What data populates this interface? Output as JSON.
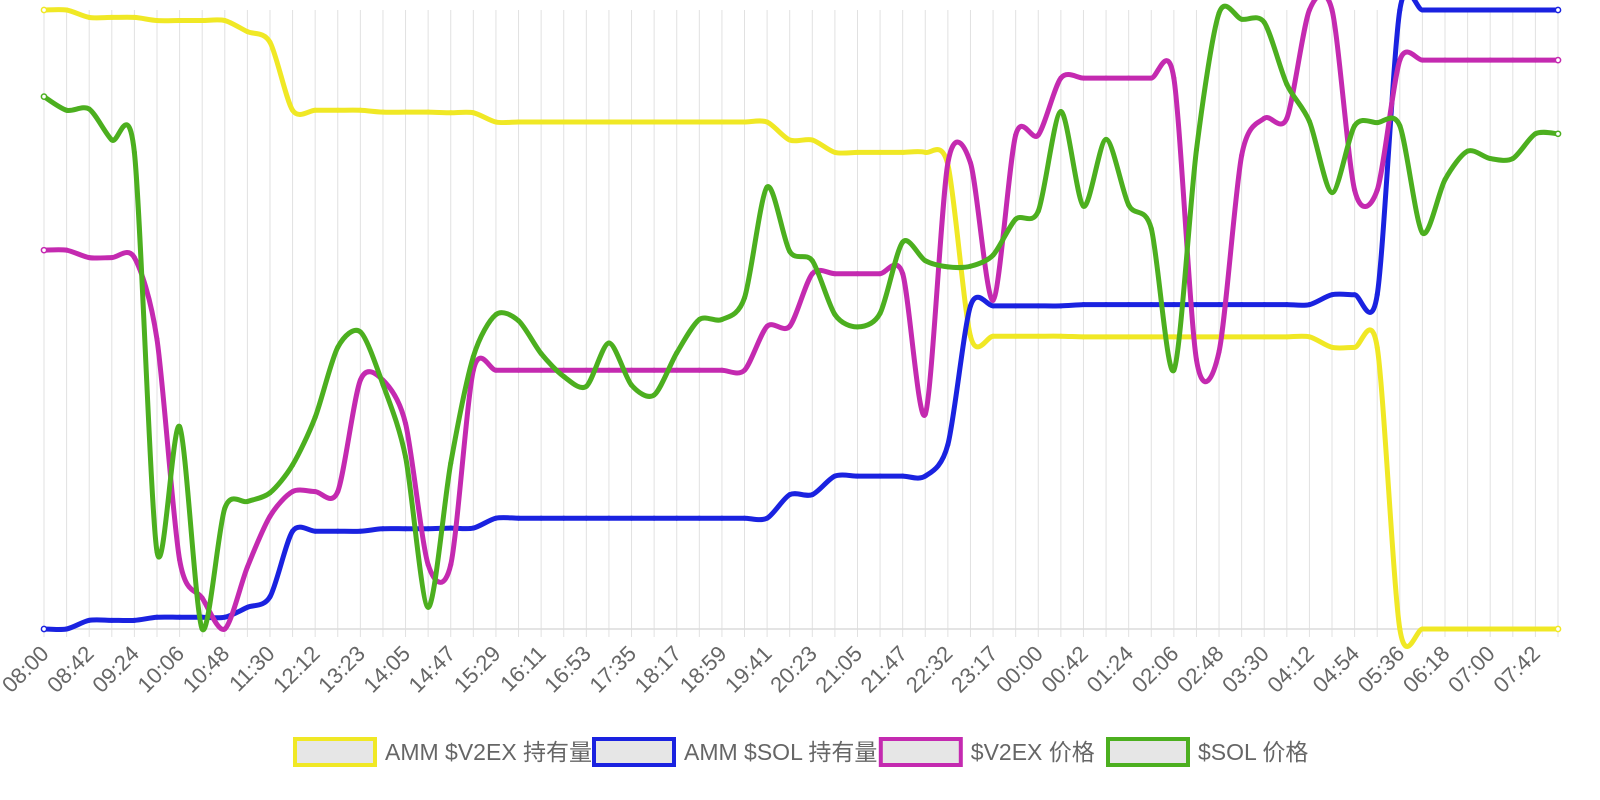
{
  "chart_data": {
    "type": "line",
    "x": [
      "08:00",
      "08:21",
      "08:42",
      "09:03",
      "09:24",
      "09:45",
      "10:06",
      "10:27",
      "10:48",
      "11:09",
      "11:30",
      "11:51",
      "12:12",
      "12:47",
      "13:23",
      "13:44",
      "14:05",
      "14:26",
      "14:47",
      "15:08",
      "15:29",
      "15:50",
      "16:11",
      "16:32",
      "16:53",
      "17:14",
      "17:35",
      "17:56",
      "18:17",
      "18:38",
      "18:59",
      "19:20",
      "19:41",
      "20:02",
      "20:23",
      "20:44",
      "21:05",
      "21:26",
      "21:47",
      "22:08",
      "22:32",
      "22:54",
      "23:17",
      "23:38",
      "00:00",
      "00:21",
      "00:42",
      "01:03",
      "01:24",
      "01:45",
      "02:06",
      "02:27",
      "02:48",
      "03:09",
      "03:30",
      "03:51",
      "04:12",
      "04:33",
      "04:54",
      "05:15",
      "05:36",
      "05:57",
      "06:18",
      "06:39",
      "07:00",
      "07:21",
      "07:42",
      "08:03"
    ],
    "tick_labels": [
      "08:00",
      "08:42",
      "09:24",
      "10:06",
      "10:48",
      "11:30",
      "12:12",
      "13:23",
      "14:05",
      "14:47",
      "15:29",
      "16:11",
      "16:53",
      "17:35",
      "18:17",
      "18:59",
      "19:41",
      "20:23",
      "21:05",
      "21:47",
      "22:32",
      "23:17",
      "00:00",
      "00:42",
      "01:24",
      "02:06",
      "02:48",
      "03:30",
      "04:12",
      "04:54",
      "05:36",
      "06:18",
      "07:00",
      "07:42"
    ],
    "ylim": [
      0,
      1
    ],
    "grid": true,
    "legend_position": "bottom",
    "series": [
      {
        "name": "AMM $V2EX 持有量",
        "color": "#f0e825",
        "values": [
          1.0,
          1.0,
          0.988,
          0.988,
          0.988,
          0.983,
          0.983,
          0.983,
          0.983,
          0.965,
          0.948,
          0.838,
          0.838,
          0.838,
          0.838,
          0.835,
          0.835,
          0.835,
          0.834,
          0.834,
          0.819,
          0.819,
          0.819,
          0.819,
          0.819,
          0.819,
          0.819,
          0.819,
          0.819,
          0.819,
          0.819,
          0.819,
          0.819,
          0.79,
          0.79,
          0.77,
          0.77,
          0.77,
          0.77,
          0.77,
          0.75,
          0.473,
          0.473,
          0.473,
          0.473,
          0.473,
          0.472,
          0.472,
          0.472,
          0.472,
          0.472,
          0.472,
          0.472,
          0.472,
          0.472,
          0.472,
          0.472,
          0.455,
          0.455,
          0.455,
          0.0,
          0.0,
          0.0,
          0.0,
          0.0,
          0.0,
          0.0,
          0.0
        ]
      },
      {
        "name": "AMM $SOL 持有量",
        "color": "#1a22e0",
        "values": [
          0.0,
          0.0,
          0.014,
          0.014,
          0.014,
          0.019,
          0.019,
          0.019,
          0.019,
          0.035,
          0.052,
          0.158,
          0.158,
          0.158,
          0.158,
          0.162,
          0.162,
          0.162,
          0.163,
          0.163,
          0.179,
          0.179,
          0.179,
          0.179,
          0.179,
          0.179,
          0.179,
          0.179,
          0.179,
          0.179,
          0.179,
          0.179,
          0.179,
          0.217,
          0.217,
          0.247,
          0.247,
          0.247,
          0.247,
          0.247,
          0.298,
          0.522,
          0.522,
          0.522,
          0.522,
          0.522,
          0.524,
          0.524,
          0.524,
          0.524,
          0.524,
          0.524,
          0.524,
          0.524,
          0.524,
          0.524,
          0.524,
          0.54,
          0.54,
          0.54,
          1.0,
          1.0,
          1.0,
          1.0,
          1.0,
          1.0,
          1.0,
          1.0
        ]
      },
      {
        "name": "$V2EX 价格",
        "color": "#c42ab0",
        "values": [
          0.612,
          0.612,
          0.6,
          0.6,
          0.6,
          0.468,
          0.112,
          0.05,
          0.0,
          0.1,
          0.182,
          0.222,
          0.222,
          0.222,
          0.402,
          0.402,
          0.332,
          0.104,
          0.104,
          0.418,
          0.418,
          0.418,
          0.418,
          0.418,
          0.418,
          0.418,
          0.418,
          0.418,
          0.418,
          0.418,
          0.418,
          0.418,
          0.489,
          0.489,
          0.574,
          0.574,
          0.574,
          0.574,
          0.574,
          0.347,
          0.753,
          0.753,
          0.531,
          0.798,
          0.798,
          0.89,
          0.89,
          0.89,
          0.89,
          0.89,
          0.89,
          0.435,
          0.448,
          0.765,
          0.825,
          0.825,
          1.0,
          1.0,
          0.709,
          0.709,
          0.919,
          0.919,
          0.919,
          0.919,
          0.919,
          0.919,
          0.919,
          0.919
        ]
      },
      {
        "name": "$SOL 价格",
        "color": "#4caf1f",
        "values": [
          0.86,
          0.838,
          0.84,
          0.79,
          0.77,
          0.125,
          0.327,
          0.0,
          0.195,
          0.206,
          0.22,
          0.265,
          0.342,
          0.455,
          0.48,
          0.395,
          0.278,
          0.035,
          0.268,
          0.44,
          0.508,
          0.498,
          0.445,
          0.408,
          0.392,
          0.462,
          0.394,
          0.378,
          0.446,
          0.5,
          0.5,
          0.535,
          0.714,
          0.61,
          0.595,
          0.508,
          0.488,
          0.51,
          0.625,
          0.595,
          0.585,
          0.586,
          0.604,
          0.662,
          0.675,
          0.836,
          0.683,
          0.791,
          0.685,
          0.647,
          0.418,
          0.774,
          0.995,
          0.985,
          0.98,
          0.88,
          0.82,
          0.705,
          0.813,
          0.818,
          0.813,
          0.64,
          0.726,
          0.772,
          0.76,
          0.76,
          0.8,
          0.8
        ]
      }
    ]
  }
}
